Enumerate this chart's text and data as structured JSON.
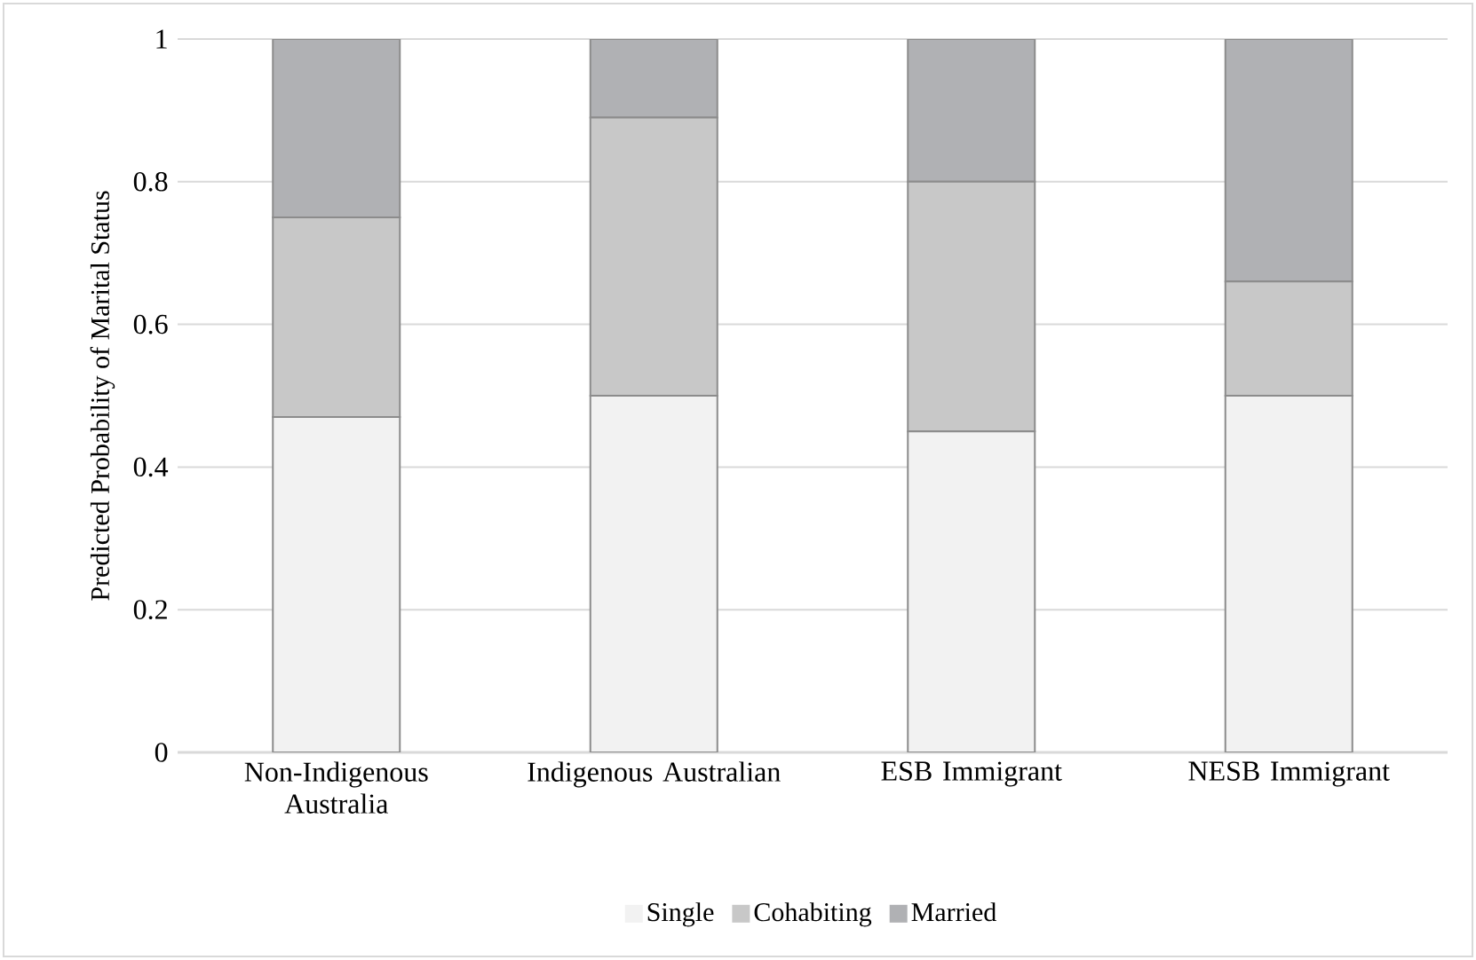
{
  "chart_data": {
    "type": "bar",
    "stacked": true,
    "ylabel": "Predicted Probability of Marital Status",
    "categories": [
      "Non-Indigenous Australia",
      "Indigenous Australian",
      "ESB Immigrant",
      "NESB Immigrant"
    ],
    "series": [
      {
        "name": "Single",
        "color": "#f2f2f2",
        "values": [
          0.47,
          0.5,
          0.45,
          0.5
        ]
      },
      {
        "name": "Cohabiting",
        "color": "#c8c8c8",
        "values": [
          0.28,
          0.39,
          0.35,
          0.16
        ]
      },
      {
        "name": "Married",
        "color": "#b0b1b4",
        "values": [
          0.25,
          0.11,
          0.2,
          0.34
        ]
      }
    ],
    "ylim": [
      0,
      1
    ],
    "yticks": [
      0,
      0.2,
      0.4,
      0.6,
      0.8,
      1
    ],
    "grid": "y",
    "legend": "bottom"
  }
}
